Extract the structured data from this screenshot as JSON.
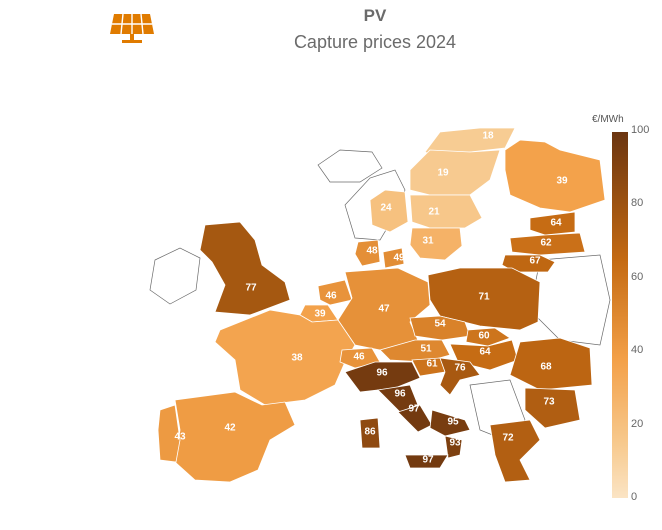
{
  "header": {
    "title": "PV",
    "subtitle": "Capture prices 2024",
    "icon": "solar-panel-icon",
    "icon_color": "#e07b00"
  },
  "legend": {
    "unit": "€/MWh",
    "ticks": [
      "100",
      "80",
      "60",
      "40",
      "20",
      "0"
    ],
    "min": 0,
    "max": 100,
    "color_low": "#fbe4c4",
    "color_high": "#6b3510"
  },
  "map_data": {
    "type": "choropleth",
    "metric": "PV capture price",
    "unit": "€/MWh",
    "values": [
      {
        "region": "NO-North",
        "value": 18
      },
      {
        "region": "Sweden-North",
        "value": 19
      },
      {
        "region": "Finland",
        "value": 39
      },
      {
        "region": "Norway-South",
        "value": 24
      },
      {
        "region": "Sweden-Central",
        "value": 21
      },
      {
        "region": "Sweden-South",
        "value": 31
      },
      {
        "region": "Estonia",
        "value": 64
      },
      {
        "region": "Latvia",
        "value": 62
      },
      {
        "region": "Lithuania",
        "value": 67
      },
      {
        "region": "Denmark-West",
        "value": 48
      },
      {
        "region": "Denmark-East",
        "value": 49
      },
      {
        "region": "United Kingdom",
        "value": 77
      },
      {
        "region": "Netherlands",
        "value": 46
      },
      {
        "region": "Belgium",
        "value": 39
      },
      {
        "region": "Germany",
        "value": 47
      },
      {
        "region": "Poland",
        "value": 71
      },
      {
        "region": "Czechia",
        "value": 54
      },
      {
        "region": "Slovakia",
        "value": 60
      },
      {
        "region": "Austria",
        "value": 51
      },
      {
        "region": "Hungary",
        "value": 64
      },
      {
        "region": "France",
        "value": 38
      },
      {
        "region": "Switzerland",
        "value": 46
      },
      {
        "region": "Slovenia",
        "value": 61
      },
      {
        "region": "Croatia",
        "value": 76
      },
      {
        "region": "Romania",
        "value": 68
      },
      {
        "region": "Bulgaria",
        "value": 73
      },
      {
        "region": "Italy-North",
        "value": 96
      },
      {
        "region": "Italy-Centre-North",
        "value": 96
      },
      {
        "region": "Italy-Centre-South",
        "value": 97
      },
      {
        "region": "Italy-South",
        "value": 95
      },
      {
        "region": "Italy-Calabria",
        "value": 93
      },
      {
        "region": "Sardinia",
        "value": 86
      },
      {
        "region": "Sicily",
        "value": 97
      },
      {
        "region": "Greece",
        "value": 72
      },
      {
        "region": "Spain",
        "value": 42
      },
      {
        "region": "Portugal",
        "value": 43
      }
    ]
  }
}
